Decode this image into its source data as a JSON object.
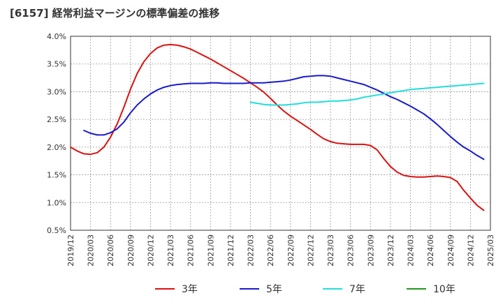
{
  "chart_data": {
    "type": "line",
    "title": "[6157]  経常利益マージンの標準偏差の推移",
    "xlabel": "",
    "ylabel": "",
    "ylim": [
      0.5,
      4.0
    ],
    "yticks": [
      "0.5%",
      "1.0%",
      "1.5%",
      "2.0%",
      "2.5%",
      "3.0%",
      "3.5%",
      "4.0%"
    ],
    "ytick_values": [
      0.5,
      1.0,
      1.5,
      2.0,
      2.5,
      3.0,
      3.5,
      4.0
    ],
    "xticks": [
      "2019/12",
      "2020/03",
      "2020/06",
      "2020/09",
      "2020/12",
      "2021/03",
      "2021/06",
      "2021/09",
      "2021/12",
      "2022/03",
      "2022/06",
      "2022/09",
      "2022/12",
      "2023/03",
      "2023/06",
      "2023/09",
      "2023/12",
      "2024/03",
      "2024/06",
      "2024/09",
      "2024/12",
      "2025/03"
    ],
    "grid": true,
    "legend_position": "bottom",
    "series": [
      {
        "name": "3年",
        "color": "#dd1111",
        "values": [
          2.0,
          1.93,
          1.88,
          1.87,
          1.9,
          2.0,
          2.18,
          2.42,
          2.72,
          3.05,
          3.33,
          3.54,
          3.69,
          3.79,
          3.84,
          3.85,
          3.84,
          3.81,
          3.77,
          3.71,
          3.65,
          3.59,
          3.52,
          3.45,
          3.38,
          3.31,
          3.24,
          3.16,
          3.08,
          2.99,
          2.88,
          2.76,
          2.65,
          2.56,
          2.48,
          2.4,
          2.32,
          2.23,
          2.15,
          2.1,
          2.07,
          2.06,
          2.05,
          2.05,
          2.05,
          2.03,
          1.95,
          1.79,
          1.65,
          1.55,
          1.49,
          1.47,
          1.46,
          1.46,
          1.47,
          1.48,
          1.47,
          1.45,
          1.38,
          1.22,
          1.08,
          0.95,
          0.86
        ]
      },
      {
        "name": "5年",
        "color": "#1a1acc",
        "values": [
          null,
          null,
          2.3,
          2.25,
          2.22,
          2.22,
          2.26,
          2.33,
          2.45,
          2.62,
          2.76,
          2.87,
          2.96,
          3.03,
          3.08,
          3.11,
          3.13,
          3.14,
          3.15,
          3.15,
          3.15,
          3.16,
          3.16,
          3.15,
          3.15,
          3.15,
          3.15,
          3.16,
          3.16,
          3.16,
          3.17,
          3.18,
          3.19,
          3.21,
          3.24,
          3.27,
          3.28,
          3.29,
          3.29,
          3.28,
          3.25,
          3.22,
          3.19,
          3.16,
          3.13,
          3.08,
          3.03,
          2.97,
          2.91,
          2.86,
          2.8,
          2.74,
          2.67,
          2.6,
          2.51,
          2.41,
          2.3,
          2.19,
          2.09,
          2.0,
          1.93,
          1.85,
          1.78
        ]
      },
      {
        "name": "7年",
        "color": "#22dddd",
        "values": [
          null,
          null,
          null,
          null,
          null,
          null,
          null,
          null,
          null,
          null,
          null,
          null,
          null,
          null,
          null,
          null,
          null,
          null,
          null,
          null,
          null,
          null,
          null,
          null,
          null,
          null,
          null,
          2.81,
          2.79,
          2.77,
          2.76,
          2.76,
          2.76,
          2.77,
          2.78,
          2.8,
          2.81,
          2.81,
          2.82,
          2.83,
          2.83,
          2.84,
          2.85,
          2.87,
          2.9,
          2.92,
          2.94,
          2.96,
          2.98,
          3.0,
          3.02,
          3.04,
          3.05,
          3.06,
          3.07,
          3.08,
          3.09,
          3.1,
          3.11,
          3.12,
          3.13,
          3.14,
          3.15
        ]
      },
      {
        "name": "10年",
        "color": "#229922",
        "values": []
      }
    ]
  }
}
